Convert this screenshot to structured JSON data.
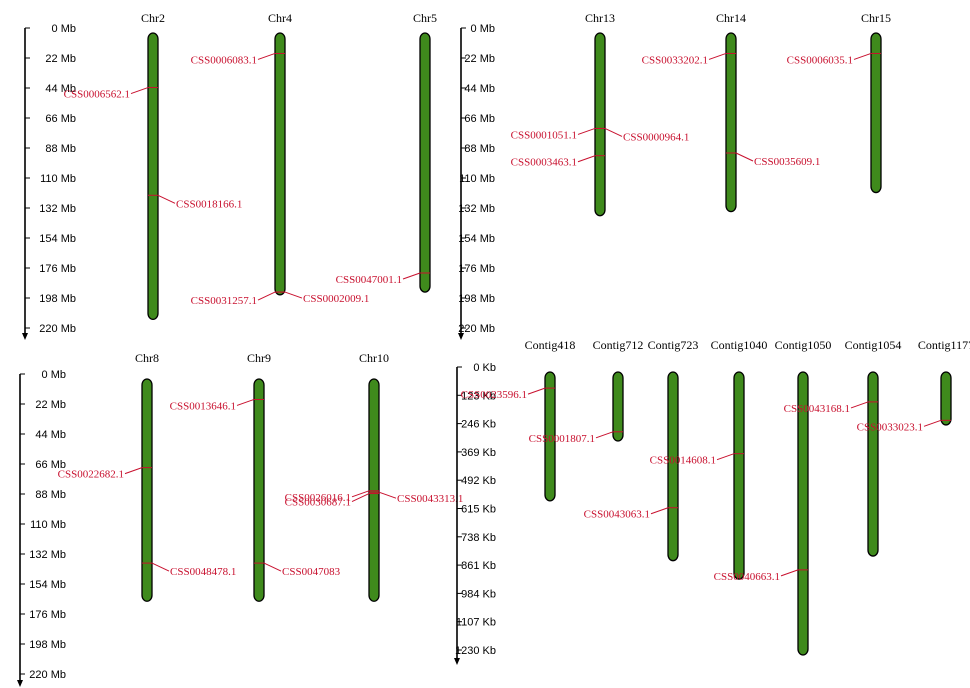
{
  "panels": [
    {
      "id": "panel-a",
      "axis": {
        "ticks": [
          "0 Mb",
          "22 Mb",
          "44 Mb",
          "66 Mb",
          "88 Mb",
          "110 Mb",
          "132 Mb",
          "154 Mb",
          "176 Mb",
          "198 Mb",
          "220 Mb"
        ],
        "max": 220
      },
      "chromosomes": [
        {
          "name": "Chr2",
          "length": 210,
          "markers": [
            {
              "label": "CSS0006562.1",
              "pos": 40,
              "side": "left"
            },
            {
              "label": "CSS0018166.1",
              "pos": 119,
              "side": "right"
            }
          ]
        },
        {
          "name": "Chr4",
          "length": 192,
          "markers": [
            {
              "label": "CSS0006083.1",
              "pos": 15,
              "side": "left"
            },
            {
              "label": "CSS0031257.1",
              "pos": 190,
              "side": "left"
            },
            {
              "label": "CSS0002009.1",
              "pos": 190,
              "side": "right"
            }
          ]
        },
        {
          "name": "Chr5",
          "length": 190,
          "markers": [
            {
              "label": "CSS0047001.1",
              "pos": 176,
              "side": "left"
            }
          ]
        }
      ]
    },
    {
      "id": "panel-b",
      "axis": {
        "ticks": [
          "0 Mb",
          "22 Mb",
          "44 Mb",
          "66 Mb",
          "88 Mb",
          "110 Mb",
          "132 Mb",
          "154 Mb",
          "176 Mb",
          "198 Mb",
          "220 Mb"
        ],
        "max": 220
      },
      "chromosomes": [
        {
          "name": "Chr13",
          "length": 134,
          "markers": [
            {
              "label": "CSS0001051.1",
              "pos": 70,
              "side": "left"
            },
            {
              "label": "CSS0000964.1",
              "pos": 70,
              "side": "right"
            },
            {
              "label": "CSS0003463.1",
              "pos": 90,
              "side": "left"
            }
          ]
        },
        {
          "name": "Chr14",
          "length": 131,
          "markers": [
            {
              "label": "CSS0033202.1",
              "pos": 15,
              "side": "left"
            },
            {
              "label": "CSS0035609.1",
              "pos": 88,
              "side": "right"
            }
          ]
        },
        {
          "name": "Chr15",
          "length": 117,
          "markers": [
            {
              "label": "CSS0006035.1",
              "pos": 15,
              "side": "left"
            }
          ]
        }
      ]
    },
    {
      "id": "panel-c",
      "axis": {
        "ticks": [
          "0 Mb",
          "22 Mb",
          "44 Mb",
          "66 Mb",
          "88 Mb",
          "110 Mb",
          "132 Mb",
          "154 Mb",
          "176 Mb",
          "198 Mb",
          "220 Mb"
        ],
        "max": 220
      },
      "chromosomes": [
        {
          "name": "Chr8",
          "length": 163,
          "markers": [
            {
              "label": "CSS0022682.1",
              "pos": 65,
              "side": "left"
            },
            {
              "label": "CSS0048478.1",
              "pos": 135,
              "side": "right"
            }
          ]
        },
        {
          "name": "Chr9",
          "length": 163,
          "markers": [
            {
              "label": "CSS0013646.1",
              "pos": 15,
              "side": "left"
            },
            {
              "label": "CSS0047083",
              "pos": 135,
              "side": "right"
            }
          ]
        },
        {
          "name": "Chr10",
          "length": 163,
          "markers": [
            {
              "label": "CSS0026016.1",
              "pos": 82,
              "side": "left"
            },
            {
              "label": "CSS0030687.1",
              "pos": 84,
              "side": "left"
            },
            {
              "label": "CSS0043313.1",
              "pos": 83,
              "side": "right"
            }
          ]
        }
      ]
    },
    {
      "id": "panel-d",
      "axis": {
        "ticks": [
          "0 Kb",
          "123 Kb",
          "246 Kb",
          "369 Kb",
          "492 Kb",
          "615 Kb",
          "738 Kb",
          "861 Kb",
          "984 Kb",
          "1107 Kb",
          "1230 Kb"
        ],
        "max": 1230
      },
      "chromosomes": [
        {
          "name": "Contig418",
          "length": 560,
          "markers": [
            {
              "label": "CSS0023596.1",
              "pos": 70,
              "side": "left"
            }
          ]
        },
        {
          "name": "Contig712",
          "length": 300,
          "markers": [
            {
              "label": "CSS0001807.1",
              "pos": 260,
              "side": "left"
            }
          ]
        },
        {
          "name": "Contig723",
          "length": 820,
          "markers": [
            {
              "label": "CSS0043063.1",
              "pos": 590,
              "side": "left"
            }
          ]
        },
        {
          "name": "Contig1040",
          "length": 900,
          "markers": [
            {
              "label": "CSS0014608.1",
              "pos": 355,
              "side": "left"
            }
          ]
        },
        {
          "name": "Contig1050",
          "length": 1230,
          "markers": [
            {
              "label": "CSS0040663.1",
              "pos": 860,
              "side": "left"
            }
          ]
        },
        {
          "name": "Contig1054",
          "length": 800,
          "markers": [
            {
              "label": "CSS0043168.1",
              "pos": 130,
              "side": "left"
            }
          ]
        },
        {
          "name": "Contig1177",
          "length": 230,
          "markers": [
            {
              "label": "CSS0033023.1",
              "pos": 210,
              "side": "left"
            }
          ]
        }
      ]
    }
  ]
}
